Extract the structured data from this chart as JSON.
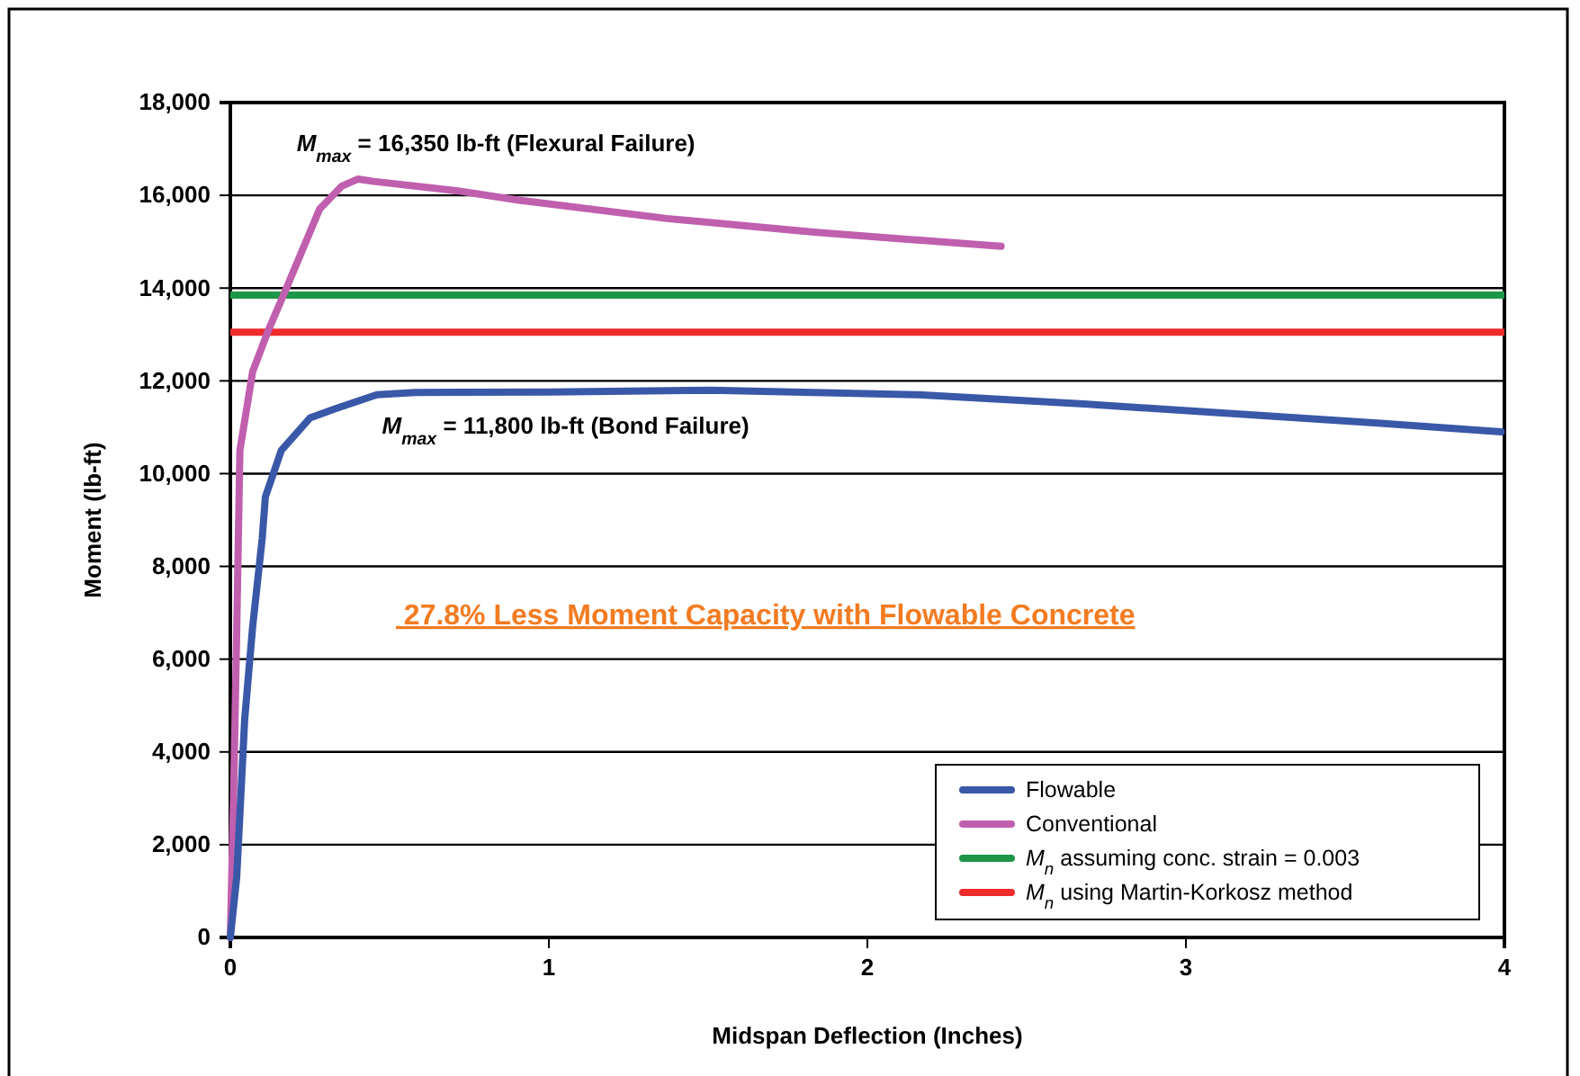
{
  "chart_data": {
    "type": "line",
    "xlabel": "Midspan Deflection (Inches)",
    "ylabel": "Moment (lb-ft)",
    "xlim": [
      0,
      4
    ],
    "xticks": [
      0,
      1,
      2,
      3,
      4
    ],
    "ylim": [
      0,
      18000
    ],
    "yticks": [
      0,
      {
        "value": 2000,
        "label": "2,000"
      },
      {
        "value": 4000,
        "label": "4,000"
      },
      {
        "value": 6000,
        "label": "6,000"
      },
      {
        "value": 8000,
        "label": "8,000"
      },
      {
        "value": 10000,
        "label": "10,000"
      },
      {
        "value": 12000,
        "label": "12,000"
      },
      {
        "value": 14000,
        "label": "14,000"
      },
      {
        "value": 16000,
        "label": "16,000"
      },
      {
        "value": 18000,
        "label": "18,000"
      }
    ],
    "grid": "y",
    "legend": "bottom right",
    "marker": "none",
    "line_style": "solid",
    "series": [
      {
        "name": "Flowable",
        "color": "#3a58a8",
        "x": [
          0,
          0.02,
          0.045,
          0.07,
          0.1,
          0.11,
          0.16,
          0.25,
          0.33,
          0.46,
          0.58,
          1.0,
          1.51,
          2.16,
          2.68,
          3.58,
          3.99
        ],
        "values": [
          0,
          1300,
          4700,
          6700,
          8600,
          9500,
          10500,
          11200,
          11400,
          11700,
          11750,
          11760,
          11800,
          11700,
          11500,
          11100,
          10900
        ]
      },
      {
        "name": "Conventional",
        "color": "#c05fae",
        "x": [
          0,
          0.01,
          0.02,
          0.03,
          0.07,
          0.12,
          0.17,
          0.28,
          0.35,
          0.4,
          0.45,
          0.71,
          0.9,
          1.37,
          1.84,
          2.42
        ],
        "values": [
          0,
          3000,
          6600,
          10500,
          12200,
          13100,
          13900,
          15700,
          16200,
          16350,
          16300,
          16100,
          15900,
          15500,
          15200,
          14900
        ]
      },
      {
        "name": "M$_{n}$ assuming conc. strain = 0.003",
        "color": "#1e9648",
        "x": [
          0,
          4
        ],
        "values": [
          13850,
          13850
        ]
      },
      {
        "name": "M$_{n}$ using Martin-Korkosz method",
        "color": "#ee2a2a",
        "x": [
          0,
          4
        ],
        "values": [
          13050,
          13050
        ]
      }
    ],
    "annotations": [
      "M$_{max}$ = 16,350 lb-ft (Flexural Failure)",
      "M$_{max}$ = 11,800 lb-ft (Bond Failure)",
      " 27.8% Less Moment Capacity with Flowable Concrete"
    ]
  }
}
